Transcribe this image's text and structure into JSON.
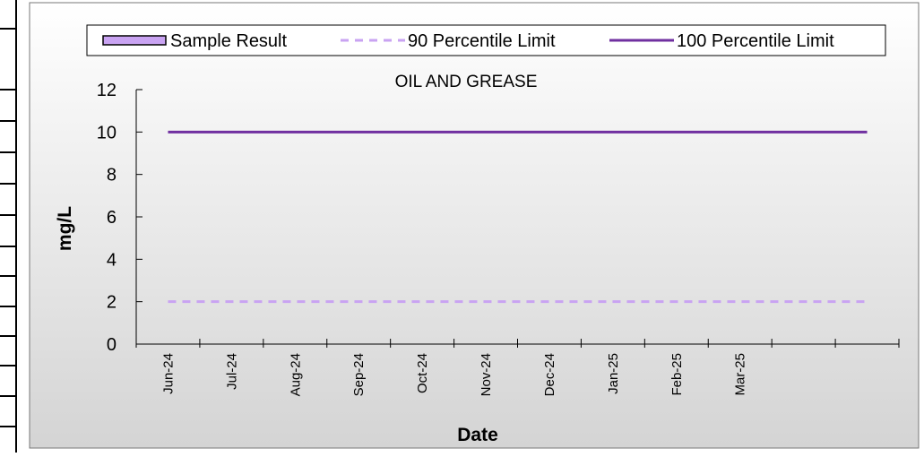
{
  "chart_data": {
    "type": "line",
    "title": "OIL AND GREASE",
    "x_label": "Date",
    "y_label": "mg/L",
    "categories": [
      "Jun-24",
      "Jul-24",
      "Aug-24",
      "Sep-24",
      "Oct-24",
      "Nov-24",
      "Dec-24",
      "Jan-25",
      "Feb-25",
      "Mar-25",
      null,
      null
    ],
    "series": [
      {
        "name": "Sample Result",
        "color": "#c9a3f2",
        "kind": "bar",
        "values": [
          null,
          null,
          null,
          null,
          null,
          null,
          null,
          null,
          null,
          null,
          null,
          null
        ]
      },
      {
        "name": "90 Percentile Limit",
        "color": "#c9a3f2",
        "dashed": true,
        "values": [
          2,
          2,
          2,
          2,
          2,
          2,
          2,
          2,
          2,
          2,
          2,
          2
        ]
      },
      {
        "name": "100 Percentile Limit",
        "color": "#7030a0",
        "values": [
          10,
          10,
          10,
          10,
          10,
          10,
          10,
          10,
          10,
          10,
          10,
          10
        ]
      }
    ],
    "ylim": [
      0,
      12
    ],
    "yticks": [
      0,
      2,
      4,
      6,
      8,
      10,
      12
    ],
    "legend": "top"
  }
}
